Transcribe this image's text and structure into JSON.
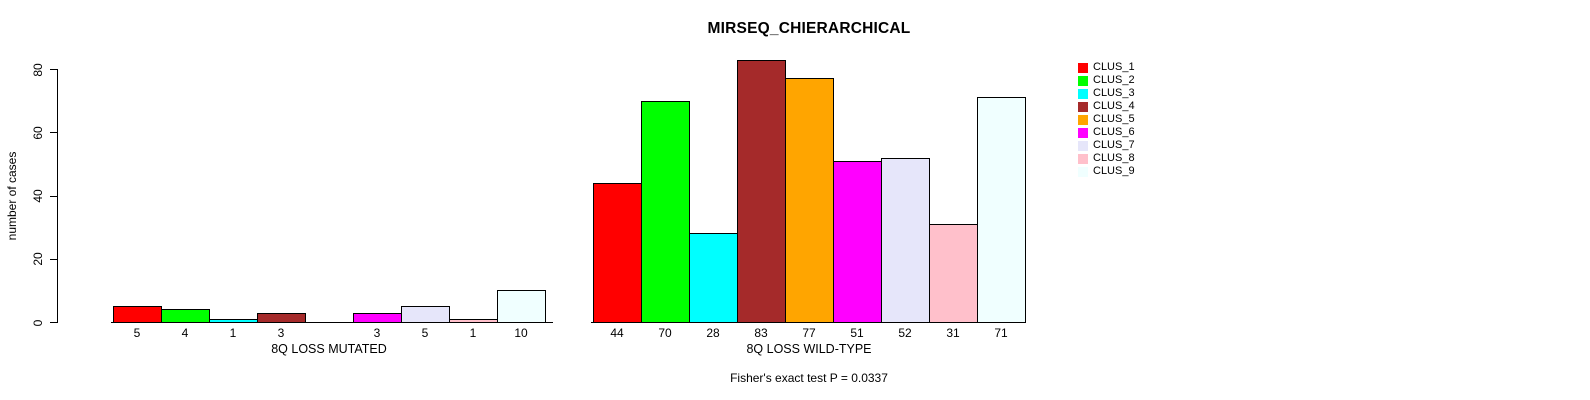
{
  "chart_data": {
    "type": "bar",
    "title": "MIRSEQ_CHIERARCHICAL",
    "ylabel": "number of cases",
    "ylim": [
      0,
      80
    ],
    "yticks": [
      0,
      20,
      40,
      60,
      80
    ],
    "grid": false,
    "legend_position": "right",
    "annotation": "Fisher's exact test P = 0.0337",
    "clusters": [
      {
        "name": "CLUS_1",
        "color": "#FF0000"
      },
      {
        "name": "CLUS_2",
        "color": "#00FF00"
      },
      {
        "name": "CLUS_3",
        "color": "#00FFFF"
      },
      {
        "name": "CLUS_4",
        "color": "#A52A2A"
      },
      {
        "name": "CLUS_5",
        "color": "#FFA500"
      },
      {
        "name": "CLUS_6",
        "color": "#FF00FF"
      },
      {
        "name": "CLUS_7",
        "color": "#E6E6FA"
      },
      {
        "name": "CLUS_8",
        "color": "#FFC0CB"
      },
      {
        "name": "CLUS_9",
        "color": "#F0FFFF"
      }
    ],
    "groups": [
      {
        "label": "8Q LOSS MUTATED",
        "values": [
          5,
          4,
          1,
          3,
          0,
          3,
          5,
          1,
          10
        ],
        "bar_labels": [
          "5",
          "4",
          "1",
          "3",
          "",
          "3",
          "5",
          "1",
          "10"
        ]
      },
      {
        "label": "8Q LOSS WILD-TYPE",
        "values": [
          44,
          70,
          28,
          83,
          77,
          51,
          52,
          31,
          71
        ],
        "bar_labels": [
          "44",
          "70",
          "28",
          "83",
          "77",
          "51",
          "52",
          "31",
          "71"
        ]
      }
    ]
  }
}
